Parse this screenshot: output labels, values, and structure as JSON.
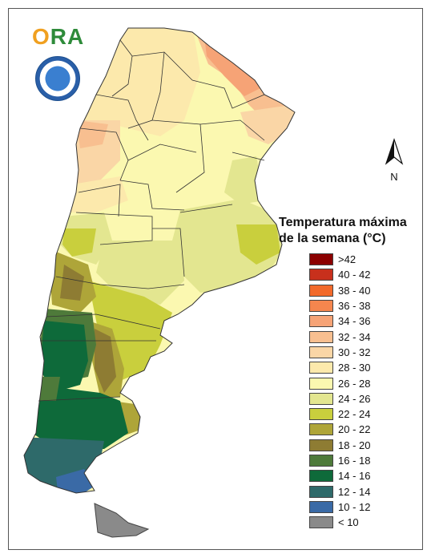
{
  "logo": {
    "text_left": "O",
    "text_right": "RA"
  },
  "north_arrow": {
    "label": "N"
  },
  "legend": {
    "title_line1": "Temperatura máxima",
    "title_line2": "de la semana (°C)",
    "items": [
      {
        "label": ">42",
        "color": "#8b0000"
      },
      {
        "label": "40 - 42",
        "color": "#c8301c"
      },
      {
        "label": "38 - 40",
        "color": "#f26a2b"
      },
      {
        "label": "36 - 38",
        "color": "#f5864e"
      },
      {
        "label": "34 - 36",
        "color": "#f6a376"
      },
      {
        "label": "32 - 34",
        "color": "#f8bf90"
      },
      {
        "label": "30 - 32",
        "color": "#fad6a6"
      },
      {
        "label": "28 - 30",
        "color": "#fce9ac"
      },
      {
        "label": "26 - 28",
        "color": "#fbf8b0"
      },
      {
        "label": "24 - 26",
        "color": "#e3e690"
      },
      {
        "label": "22 - 24",
        "color": "#c9cf3d"
      },
      {
        "label": "20 - 22",
        "color": "#aea539"
      },
      {
        "label": "18 - 20",
        "color": "#8e7c33"
      },
      {
        "label": "16 - 18",
        "color": "#4e7a3a"
      },
      {
        "label": "14 - 16",
        "color": "#0e6a3a"
      },
      {
        "label": "12 - 14",
        "color": "#2e6a6a"
      },
      {
        "label": "10 - 12",
        "color": "#3a6aa6"
      },
      {
        "label": "< 10",
        "color": "#8a8a8a"
      }
    ]
  }
}
